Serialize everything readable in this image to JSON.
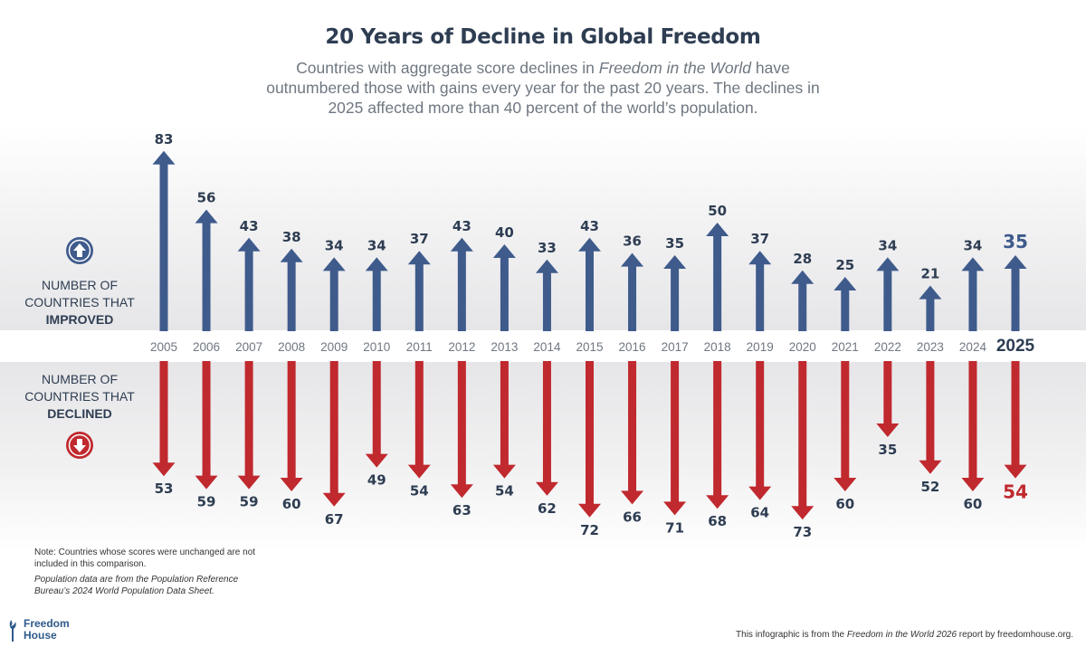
{
  "title": "20 Years of Decline in Global Freedom",
  "subtitle_pre": "Countries with aggregate score declines in ",
  "subtitle_italic": "Freedom in the World",
  "subtitle_post": " have outnumbered those with gains every year for the past 20 years. The declines in 2025 affected more than 40 percent of the world’s population.",
  "improved_label_line1": "NUMBER OF",
  "improved_label_line2": "COUNTRIES THAT",
  "improved_label_bold": "IMPROVED",
  "declined_label_line1": "NUMBER OF",
  "declined_label_line2": "COUNTRIES THAT",
  "declined_label_bold": "DECLINED",
  "icons": {
    "improved": "arrow-up-circle-icon",
    "declined": "arrow-down-circle-icon"
  },
  "colors": {
    "improved": "#3f5b8c",
    "declined": "#c0292e",
    "year": "#6f7781",
    "label": "#2e3d52"
  },
  "note_1": "Note: Countries whose scores were unchanged are not included in this comparison.",
  "note_2": "Population data are from the Population Reference Bureau’s 2024 World Population Data Sheet.",
  "logo_line1": "Freedom",
  "logo_line2": "House",
  "footer_pre": "This infographic is from the ",
  "footer_italic": "Freedom in the World 2026",
  "footer_post": " report by freedomhouse.org.",
  "chart_data": {
    "type": "bar",
    "categories": [
      "2005",
      "2006",
      "2007",
      "2008",
      "2009",
      "2010",
      "2011",
      "2012",
      "2013",
      "2014",
      "2015",
      "2016",
      "2017",
      "2018",
      "2019",
      "2020",
      "2021",
      "2022",
      "2023",
      "2024",
      "2025"
    ],
    "series": [
      {
        "name": "NUMBER OF COUNTRIES THAT IMPROVED",
        "direction": "up",
        "values": [
          83,
          56,
          43,
          38,
          34,
          34,
          37,
          43,
          40,
          33,
          43,
          36,
          35,
          50,
          37,
          28,
          25,
          34,
          21,
          34,
          35
        ]
      },
      {
        "name": "NUMBER OF COUNTRIES THAT DECLINED",
        "direction": "down",
        "values": [
          53,
          59,
          59,
          60,
          67,
          49,
          54,
          63,
          54,
          62,
          72,
          66,
          71,
          68,
          64,
          73,
          60,
          35,
          52,
          60,
          54
        ]
      }
    ],
    "highlight_category": "2025"
  }
}
